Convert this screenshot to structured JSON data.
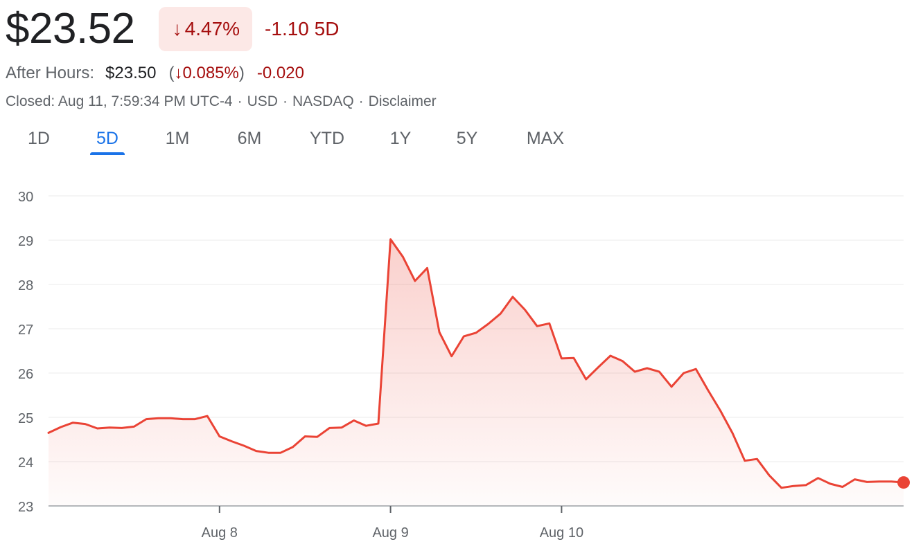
{
  "quote": {
    "price": "$23.52",
    "change_arrow": "↓",
    "change_pct": "4.47%",
    "change_abs": "-1.10",
    "change_period": "5D",
    "after_hours_label": "After Hours:",
    "after_hours_price": "$23.50",
    "after_hours_pct": "0.085%",
    "after_hours_change": "-0.020",
    "closed_text": "Closed: Aug 11, 7:59:34 PM UTC-4",
    "currency": "USD",
    "exchange": "NASDAQ",
    "disclaimer": "Disclaimer"
  },
  "tabs": [
    {
      "label": "1D",
      "active": false
    },
    {
      "label": "5D",
      "active": true
    },
    {
      "label": "1M",
      "active": false
    },
    {
      "label": "6M",
      "active": false
    },
    {
      "label": "YTD",
      "active": false
    },
    {
      "label": "1Y",
      "active": false
    },
    {
      "label": "5Y",
      "active": false
    },
    {
      "label": "MAX",
      "active": false
    }
  ],
  "colors": {
    "line": "#ea4335",
    "down_text": "#a50e0e",
    "down_bg": "#fce8e6",
    "accent": "#1a73e8",
    "grid": "#ebebeb",
    "axis_text": "#5f6368"
  },
  "chart_data": {
    "type": "area",
    "title": "",
    "xlabel": "",
    "ylabel": "",
    "ylim": [
      23,
      30
    ],
    "yticks": [
      23,
      24,
      25,
      26,
      27,
      28,
      29,
      30
    ],
    "x_range": [
      0,
      70
    ],
    "xticks": [
      {
        "x": 14,
        "label": "Aug 8"
      },
      {
        "x": 28,
        "label": "Aug 9"
      },
      {
        "x": 42,
        "label": "Aug 10"
      }
    ],
    "grid": true,
    "series": [
      {
        "values": [
          24.65,
          24.78,
          24.88,
          24.85,
          24.75,
          24.77,
          24.76,
          24.79,
          24.96,
          24.98,
          24.98,
          24.96,
          24.96,
          25.03,
          24.57,
          24.46,
          24.36,
          24.24,
          24.2,
          24.2,
          24.33,
          24.57,
          24.56,
          24.76,
          24.77,
          24.93,
          24.81,
          24.86,
          29.02,
          28.63,
          28.08,
          28.37,
          26.92,
          26.38,
          26.83,
          26.91,
          27.11,
          27.34,
          27.72,
          27.43,
          27.06,
          27.12,
          26.33,
          26.34,
          25.86,
          26.13,
          26.39,
          26.27,
          26.03,
          26.11,
          26.03,
          25.69,
          26.0,
          26.09,
          25.61,
          25.15,
          24.64,
          24.02,
          24.06,
          23.69,
          23.41,
          23.45,
          23.47,
          23.63,
          23.5,
          23.43,
          23.6,
          23.54,
          23.55,
          23.55,
          23.53
        ]
      }
    ],
    "last_point_marker": true
  }
}
